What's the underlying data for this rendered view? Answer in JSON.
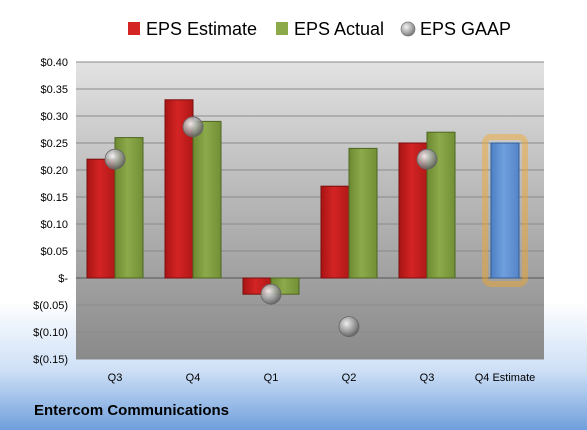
{
  "company_name": "Entercom Communications",
  "colors": {
    "estimate": "#d42424",
    "actual": "#8caa4a",
    "gaap": "#9a9a9a",
    "forecast": "#6f9fdc",
    "forecast_glow": "#f5a623"
  },
  "chart_data": {
    "type": "bar",
    "categories": [
      "Q3",
      "Q4",
      "Q1",
      "Q2",
      "Q3",
      "Q4 Estimate"
    ],
    "series": [
      {
        "name": "EPS Estimate",
        "values": [
          0.22,
          0.33,
          -0.03,
          0.17,
          0.25,
          null
        ]
      },
      {
        "name": "EPS Actual",
        "values": [
          0.26,
          0.29,
          -0.03,
          0.24,
          0.27,
          null
        ]
      },
      {
        "name": "EPS GAAP",
        "values": [
          0.22,
          0.28,
          -0.03,
          -0.09,
          0.22,
          null
        ]
      }
    ],
    "forecast": {
      "category": "Q4 Estimate",
      "value": 0.25
    },
    "ylim": [
      -0.15,
      0.4
    ],
    "y_ticks": [
      0.4,
      0.35,
      0.3,
      0.25,
      0.2,
      0.15,
      0.1,
      0.05,
      0.0,
      -0.05,
      -0.1,
      -0.15
    ],
    "y_tick_labels": [
      "$0.40",
      "$0.35",
      "$0.30",
      "$0.25",
      "$0.20",
      "$0.15",
      "$0.10",
      "$0.05",
      "$-",
      "$(0.05)",
      "$(0.10)",
      "$(0.15)"
    ],
    "grid": true,
    "legend_position": "top"
  }
}
